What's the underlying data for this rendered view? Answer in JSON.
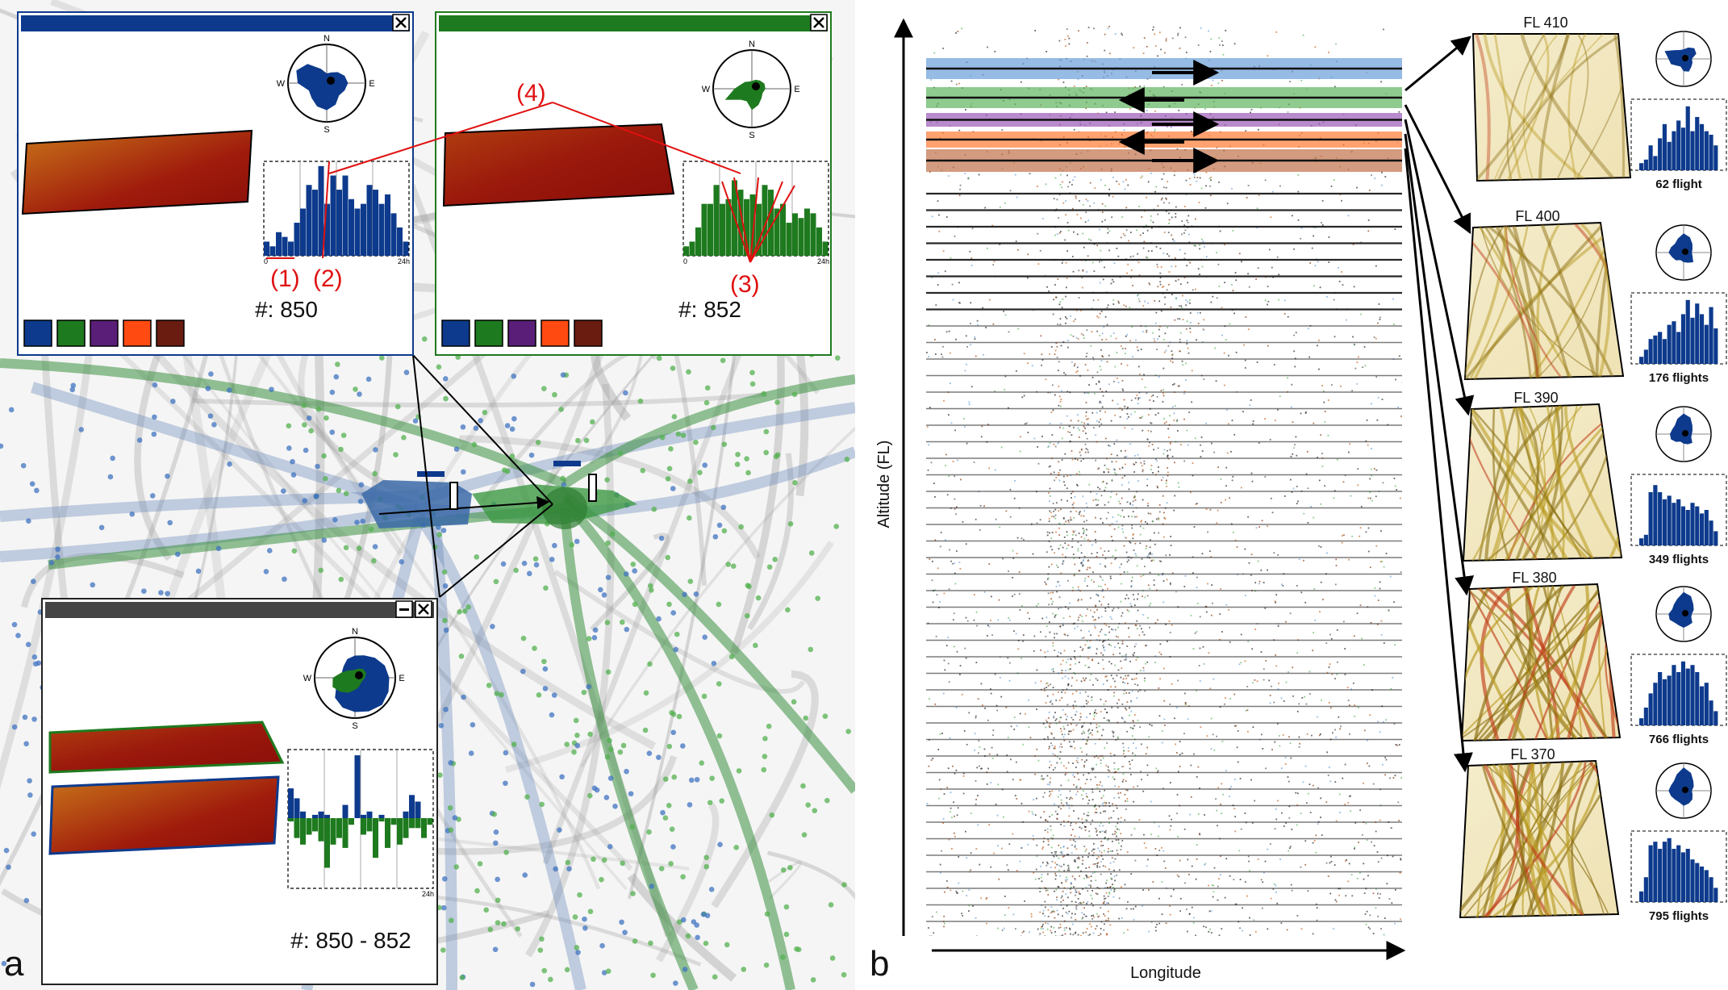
{
  "panel_a": {
    "label": "a",
    "window_blue": {
      "count": "#: 850",
      "axis_start": "0",
      "axis_end": "24h"
    },
    "window_green": {
      "count": "#: 852",
      "axis_start": "0",
      "axis_end": "24h"
    },
    "window_compare": {
      "count": "#: 850 - 852",
      "axis_end": "24h"
    },
    "compass": {
      "n": "N",
      "s": "S",
      "e": "E",
      "w": "W"
    },
    "annotations": {
      "a1": "(1)",
      "a2": "(2)",
      "a3": "(3)",
      "a4": "(4)"
    },
    "swatches": [
      "#0d3a8c",
      "#1e7a1e",
      "#5a1e78",
      "#ff4a12",
      "#6a1c10"
    ],
    "colors": {
      "blue_frame": "#0d3a8c",
      "green_frame": "#1e7a1e",
      "dark_frame": "#444444",
      "annotation_red": "#e01010"
    }
  },
  "panel_b": {
    "label": "b",
    "y_axis_label": "Altitude (FL)",
    "x_axis_label": "Longitude",
    "band_colors": [
      "#6a9ed8",
      "#5fb35f",
      "#9b59b6",
      "#ff7a33",
      "#c0704a"
    ],
    "levels": [
      {
        "fl": "FL 410",
        "flights": "62 flight"
      },
      {
        "fl": "FL 400",
        "flights": "176 flights"
      },
      {
        "fl": "FL 390",
        "flights": "349 flights"
      },
      {
        "fl": "FL 380",
        "flights": "766 flights"
      },
      {
        "fl": "FL 370",
        "flights": "795 flights"
      }
    ]
  }
}
